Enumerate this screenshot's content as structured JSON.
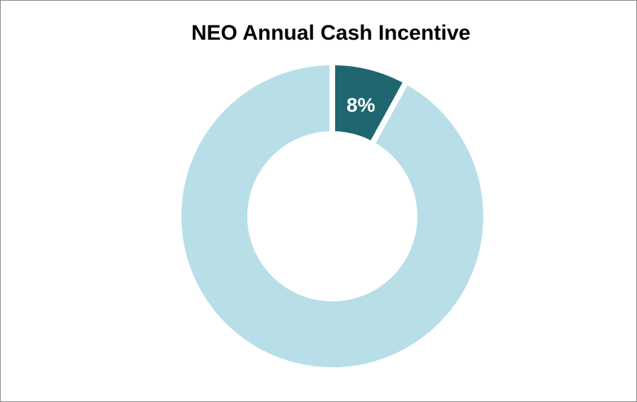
{
  "chart_data": {
    "type": "donut",
    "title": "NEO Annual Cash Incentive",
    "values": [
      8,
      92
    ],
    "value_labels": [
      "8%",
      null
    ],
    "colors": [
      "#1f6670",
      "#b8dfe8"
    ]
  }
}
